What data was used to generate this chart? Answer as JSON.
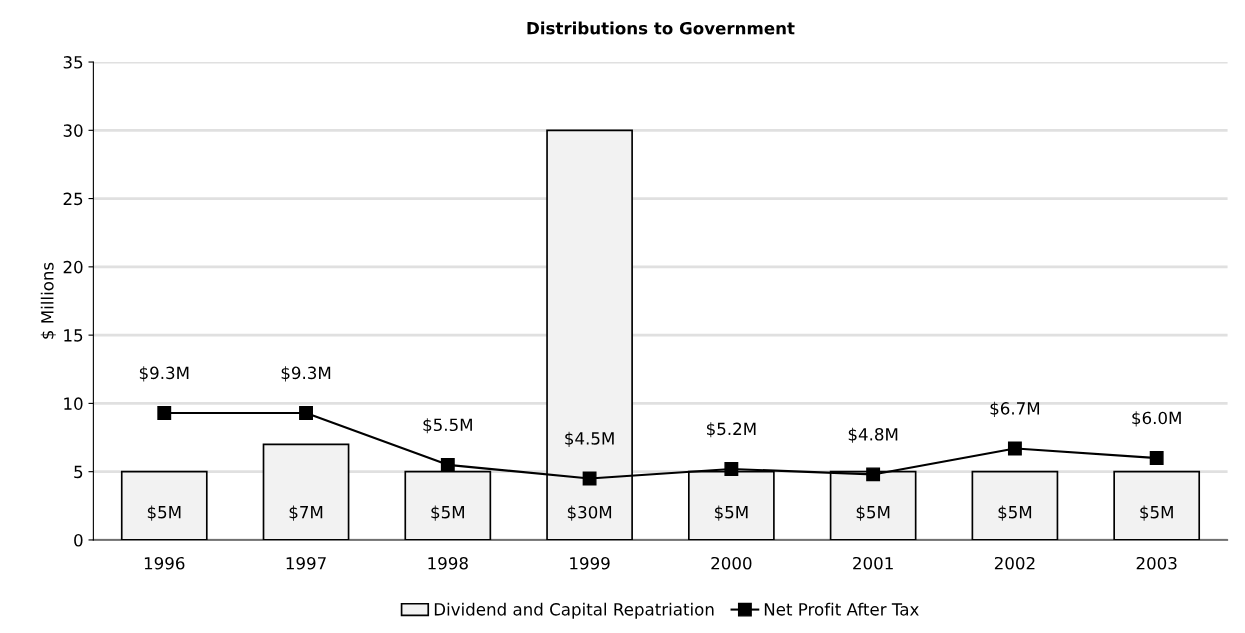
{
  "chart_data": {
    "type": "bar",
    "title": "Distributions to Government",
    "ylabel": "$ Millions",
    "categories": [
      "1996",
      "1997",
      "1998",
      "1999",
      "2000",
      "2001",
      "2002",
      "2003"
    ],
    "series": [
      {
        "name": "Dividend and Capital Repatriation",
        "color": "#f2f2f2",
        "values": [
          5,
          7,
          5,
          30,
          5,
          5,
          5,
          5
        ],
        "value_labels": [
          "$5M",
          "$7M",
          "$5M",
          "$30M",
          "$5M",
          "$5M",
          "$5M",
          "$5M"
        ]
      },
      {
        "name": "Net Profit After Tax",
        "type": "line",
        "color": "#000000",
        "marker": "square",
        "line_style": "solid",
        "values": [
          9.3,
          9.3,
          5.5,
          4.5,
          5.2,
          4.8,
          6.7,
          6.0
        ],
        "value_labels": [
          "$9.3M",
          "$9.3M",
          "$5.5M",
          "$4.5M",
          "$5.2M",
          "$4.8M",
          "$6.7M",
          "$6.0M"
        ]
      }
    ],
    "ylim": [
      0,
      35
    ],
    "yticks": [
      0,
      5,
      10,
      15,
      20,
      25,
      30,
      35
    ],
    "grid": "y",
    "legend": "bottom"
  }
}
